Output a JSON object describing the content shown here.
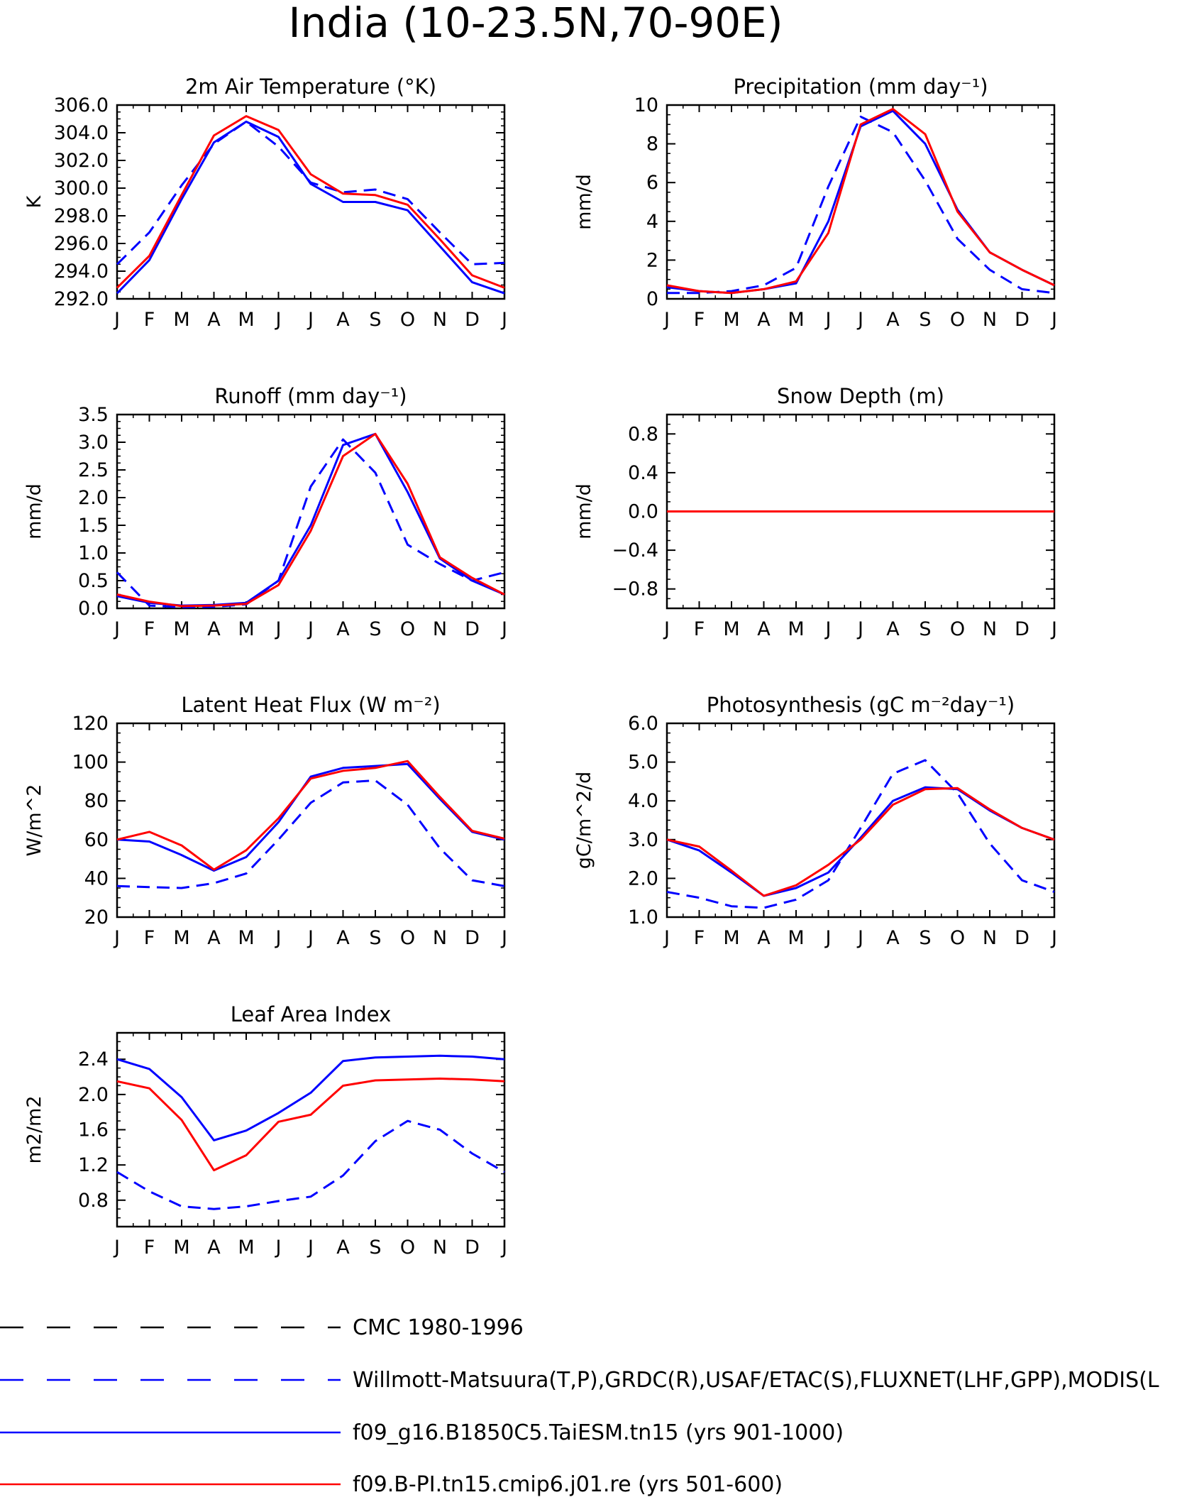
{
  "figure": {
    "title": "India (10-23.5N,70-90E)"
  },
  "colors": {
    "model_a": "#0000ff",
    "model_b": "#ff0000",
    "obs": "#0000ff",
    "legend_cmc": "#000000"
  },
  "months": [
    "J",
    "F",
    "M",
    "A",
    "M",
    "J",
    "J",
    "A",
    "S",
    "O",
    "N",
    "D",
    "J"
  ],
  "legend": [
    {
      "label": "CMC 1980-1996",
      "color": "#000000",
      "style": "dashed"
    },
    {
      "label": "Willmott-Matsuura(T,P),GRDC(R),USAF/ETAC(S),FLUXNET(LHF,GPP),MODIS(L",
      "color": "#0000ff",
      "style": "dashed"
    },
    {
      "label": "f09_g16.B1850C5.TaiESM.tn15 (yrs 901-1000)",
      "color": "#0000ff",
      "style": "solid"
    },
    {
      "label": "f09.B-PI.tn15.cmip6.j01.re (yrs 501-600)",
      "color": "#ff0000",
      "style": "solid"
    }
  ],
  "chart_data": [
    {
      "type": "line",
      "title": "2m Air Temperature (°K)",
      "ylabel": "K",
      "ylim": [
        292.0,
        306.0
      ],
      "yticks": [
        292.0,
        294.0,
        296.0,
        298.0,
        300.0,
        302.0,
        304.0,
        306.0
      ],
      "ytick_labels": [
        "292.0",
        "294.0",
        "296.0",
        "298.0",
        "300.0",
        "302.0",
        "304.0",
        "306.0"
      ],
      "categories": [
        "J",
        "F",
        "M",
        "A",
        "M",
        "J",
        "J",
        "A",
        "S",
        "O",
        "N",
        "D",
        "J"
      ],
      "series": [
        {
          "values": [
            294.5,
            296.8,
            300.2,
            303.2,
            304.8,
            303.0,
            300.4,
            299.7,
            299.9,
            299.2,
            296.8,
            294.5,
            294.6
          ]
        },
        {
          "values": [
            292.4,
            294.8,
            299.2,
            303.3,
            304.8,
            303.7,
            300.3,
            299.0,
            299.0,
            298.4,
            295.8,
            293.2,
            292.4
          ]
        },
        {
          "values": [
            292.8,
            295.1,
            299.5,
            303.8,
            305.2,
            304.2,
            301.0,
            299.6,
            299.5,
            298.8,
            296.3,
            293.7,
            292.8
          ]
        }
      ]
    },
    {
      "type": "line",
      "title": "Precipitation (mm day⁻¹)",
      "ylabel": "mm/d",
      "ylim": [
        0,
        10
      ],
      "yticks": [
        0,
        2,
        4,
        6,
        8,
        10
      ],
      "ytick_labels": [
        "0",
        "2",
        "4",
        "6",
        "8",
        "10"
      ],
      "categories": [
        "J",
        "F",
        "M",
        "A",
        "M",
        "J",
        "J",
        "A",
        "S",
        "O",
        "N",
        "D",
        "J"
      ],
      "series": [
        {
          "values": [
            0.3,
            0.3,
            0.4,
            0.7,
            1.6,
            5.8,
            9.4,
            8.6,
            6.1,
            3.1,
            1.5,
            0.5,
            0.3
          ]
        },
        {
          "values": [
            0.6,
            0.4,
            0.3,
            0.5,
            0.8,
            4.0,
            8.9,
            9.7,
            8.0,
            4.6,
            2.4,
            1.5,
            0.7
          ]
        },
        {
          "values": [
            0.7,
            0.4,
            0.3,
            0.5,
            0.9,
            3.4,
            9.0,
            9.8,
            8.5,
            4.5,
            2.4,
            1.5,
            0.7
          ]
        }
      ]
    },
    {
      "type": "line",
      "title": "Runoff (mm day⁻¹)",
      "ylabel": "mm/d",
      "ylim": [
        0,
        3.5
      ],
      "yticks": [
        0,
        0.5,
        1.0,
        1.5,
        2.0,
        2.5,
        3.0,
        3.5
      ],
      "ytick_labels": [
        "0.0",
        "0.5",
        "1.0",
        "1.5",
        "2.0",
        "2.5",
        "3.0",
        "3.5"
      ],
      "categories": [
        "J",
        "F",
        "M",
        "A",
        "M",
        "J",
        "J",
        "A",
        "S",
        "O",
        "N",
        "D",
        "J"
      ],
      "series": [
        {
          "values": [
            0.65,
            0.05,
            0.02,
            0.03,
            0.07,
            0.5,
            2.2,
            3.05,
            2.45,
            1.15,
            0.8,
            0.5,
            0.65
          ]
        },
        {
          "values": [
            0.22,
            0.1,
            0.05,
            0.06,
            0.1,
            0.5,
            1.5,
            2.95,
            3.15,
            2.1,
            0.9,
            0.5,
            0.25
          ]
        },
        {
          "values": [
            0.25,
            0.12,
            0.04,
            0.05,
            0.08,
            0.42,
            1.4,
            2.75,
            3.15,
            2.25,
            0.92,
            0.55,
            0.25
          ]
        }
      ]
    },
    {
      "type": "line",
      "title": "Snow Depth (m)",
      "ylabel": "mm/d",
      "ylim": [
        -1.0,
        1.0
      ],
      "yticks": [
        -0.8,
        -0.4,
        0.0,
        0.4,
        0.8
      ],
      "ytick_labels": [
        "−0.8",
        "−0.4",
        "0.0",
        "0.4",
        "0.8"
      ],
      "categories": [
        "J",
        "F",
        "M",
        "A",
        "M",
        "J",
        "J",
        "A",
        "S",
        "O",
        "N",
        "D",
        "J"
      ],
      "series": [
        {
          "values": [
            0,
            0,
            0,
            0,
            0,
            0,
            0,
            0,
            0,
            0,
            0,
            0,
            0
          ]
        },
        {
          "values": [
            0,
            0,
            0,
            0,
            0,
            0,
            0,
            0,
            0,
            0,
            0,
            0,
            0
          ]
        },
        {
          "values": [
            0,
            0,
            0,
            0,
            0,
            0,
            0,
            0,
            0,
            0,
            0,
            0,
            0
          ]
        }
      ]
    },
    {
      "type": "line",
      "title": "Latent Heat Flux (W m⁻²)",
      "ylabel": "W/m^2",
      "ylim": [
        20,
        120
      ],
      "yticks": [
        20,
        40,
        60,
        80,
        100,
        120
      ],
      "ytick_labels": [
        "20",
        "40",
        "60",
        "80",
        "100",
        "120"
      ],
      "categories": [
        "J",
        "F",
        "M",
        "A",
        "M",
        "J",
        "J",
        "A",
        "S",
        "O",
        "N",
        "D",
        "J"
      ],
      "series": [
        {
          "values": [
            36,
            35.5,
            35,
            37.5,
            42.5,
            60,
            79,
            89.5,
            90.5,
            78,
            55.5,
            39,
            36
          ]
        },
        {
          "values": [
            60,
            59,
            52,
            44,
            51,
            69,
            92.5,
            97,
            98,
            99,
            81,
            64,
            60
          ]
        },
        {
          "values": [
            60,
            64,
            57,
            44.5,
            54.5,
            71,
            91.5,
            95.5,
            97,
            100.5,
            82,
            64.5,
            60.5
          ]
        }
      ]
    },
    {
      "type": "line",
      "title": "Photosynthesis (gC m⁻²day⁻¹)",
      "ylabel": "gC/m^2/d",
      "ylim": [
        1.0,
        6.0
      ],
      "yticks": [
        1.0,
        2.0,
        3.0,
        4.0,
        5.0,
        6.0
      ],
      "ytick_labels": [
        "1.0",
        "2.0",
        "3.0",
        "4.0",
        "5.0",
        "6.0"
      ],
      "categories": [
        "J",
        "F",
        "M",
        "A",
        "M",
        "J",
        "J",
        "A",
        "S",
        "O",
        "N",
        "D",
        "J"
      ],
      "series": [
        {
          "values": [
            1.65,
            1.5,
            1.28,
            1.24,
            1.45,
            1.95,
            3.3,
            4.7,
            5.05,
            4.2,
            2.9,
            1.95,
            1.65
          ]
        },
        {
          "values": [
            3.0,
            2.72,
            2.15,
            1.55,
            1.75,
            2.15,
            3.05,
            4.0,
            4.35,
            4.3,
            3.75,
            3.3,
            3.0
          ]
        },
        {
          "values": [
            3.0,
            2.82,
            2.2,
            1.55,
            1.82,
            2.35,
            3.0,
            3.9,
            4.3,
            4.33,
            3.78,
            3.3,
            3.0
          ]
        }
      ]
    },
    {
      "type": "line",
      "title": "Leaf Area Index",
      "ylabel": "m2/m2",
      "ylim": [
        0.5,
        2.7
      ],
      "yticks": [
        0.8,
        1.2,
        1.6,
        2.0,
        2.4
      ],
      "ytick_labels": [
        "0.8",
        "1.2",
        "1.6",
        "2.0",
        "2.4"
      ],
      "categories": [
        "J",
        "F",
        "M",
        "A",
        "M",
        "J",
        "J",
        "A",
        "S",
        "O",
        "N",
        "D",
        "J"
      ],
      "series": [
        {
          "values": [
            1.12,
            0.9,
            0.73,
            0.7,
            0.73,
            0.79,
            0.84,
            1.08,
            1.47,
            1.7,
            1.6,
            1.33,
            1.12
          ]
        },
        {
          "values": [
            2.4,
            2.29,
            1.97,
            1.48,
            1.59,
            1.79,
            2.02,
            2.38,
            2.42,
            2.43,
            2.44,
            2.43,
            2.4
          ]
        },
        {
          "values": [
            2.15,
            2.07,
            1.71,
            1.14,
            1.31,
            1.69,
            1.77,
            2.1,
            2.16,
            2.17,
            2.18,
            2.17,
            2.15
          ]
        }
      ]
    }
  ]
}
